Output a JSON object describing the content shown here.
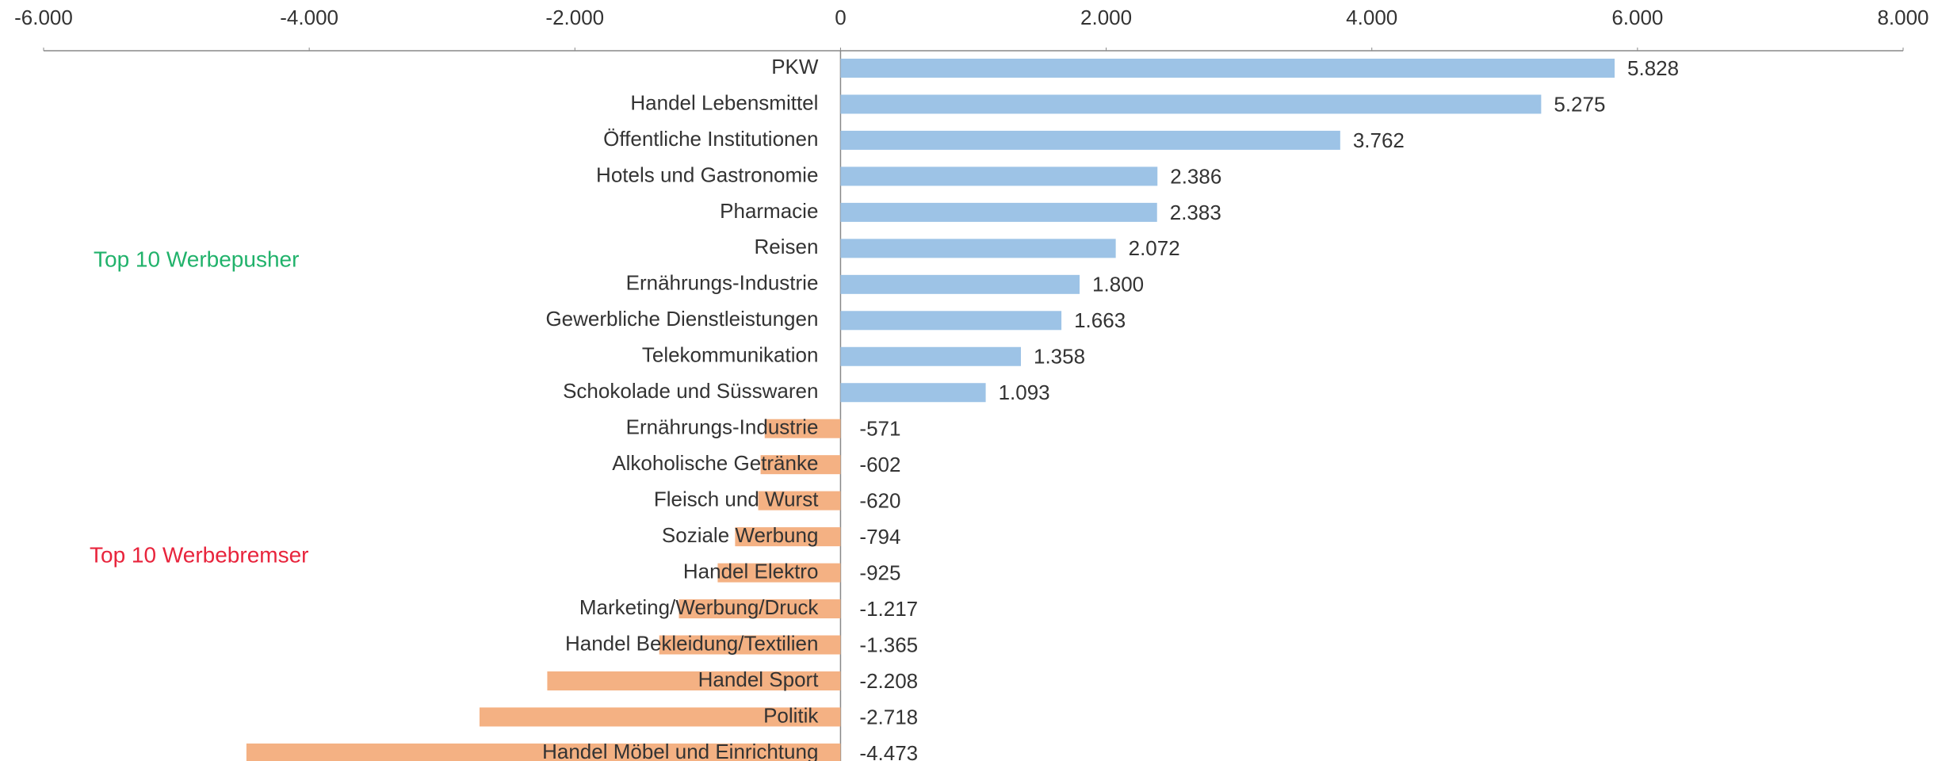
{
  "chart_data": {
    "type": "bar",
    "orientation": "horizontal",
    "categories": [
      "PKW",
      "Handel Lebensmittel",
      "Öffentliche Institutionen",
      "Hotels und Gastronomie",
      "Pharmacie",
      "Reisen",
      "Ernährungs-Industrie",
      "Gewerbliche Dienstleistungen",
      "Telekommunikation",
      "Schokolade und Süsswaren",
      "Ernährungs-Industrie",
      "Alkoholische Getränke",
      "Fleisch und Wurst",
      "Soziale  Werbung",
      "Handel Elektro",
      "Marketing/Werbung/Druck",
      "Handel Bekleidung/Textilien",
      "Handel Sport",
      "Politik",
      "Handel Möbel und Einrichtung"
    ],
    "values": [
      5828,
      5275,
      3762,
      2386,
      2383,
      2072,
      1800,
      1663,
      1358,
      1093,
      -571,
      -602,
      -620,
      -794,
      -925,
      -1217,
      -1365,
      -2208,
      -2718,
      -4473
    ],
    "value_labels": [
      "5.828",
      "5.275",
      "3.762",
      "2.386",
      "2.383",
      "2.072",
      "1.800",
      "1.663",
      "1.358",
      "1.093",
      "-571",
      "-602",
      "-620",
      "-794",
      "-925",
      "-1.217",
      "-1.365",
      "-2.208",
      "-2.718",
      "-4.473"
    ],
    "positive_color": "#9dc3e6",
    "negative_color": "#f4b183",
    "xlim": [
      -6000,
      8000
    ],
    "xticks": [
      {
        "value": -6000,
        "label": "-6.000"
      },
      {
        "value": -4000,
        "label": "-4.000"
      },
      {
        "value": -2000,
        "label": "-2.000"
      },
      0,
      {
        "value": 2000,
        "label": "2.000"
      },
      {
        "value": 4000,
        "label": "4.000"
      },
      {
        "value": 6000,
        "label": "6.000"
      },
      {
        "value": 8000,
        "label": "8.000"
      }
    ],
    "annotations": [
      {
        "text": "Top 10 Werbepusher",
        "color": "#21b26b"
      },
      {
        "text": "Top 10 Werbebremser",
        "color": "#e8243c"
      }
    ]
  }
}
